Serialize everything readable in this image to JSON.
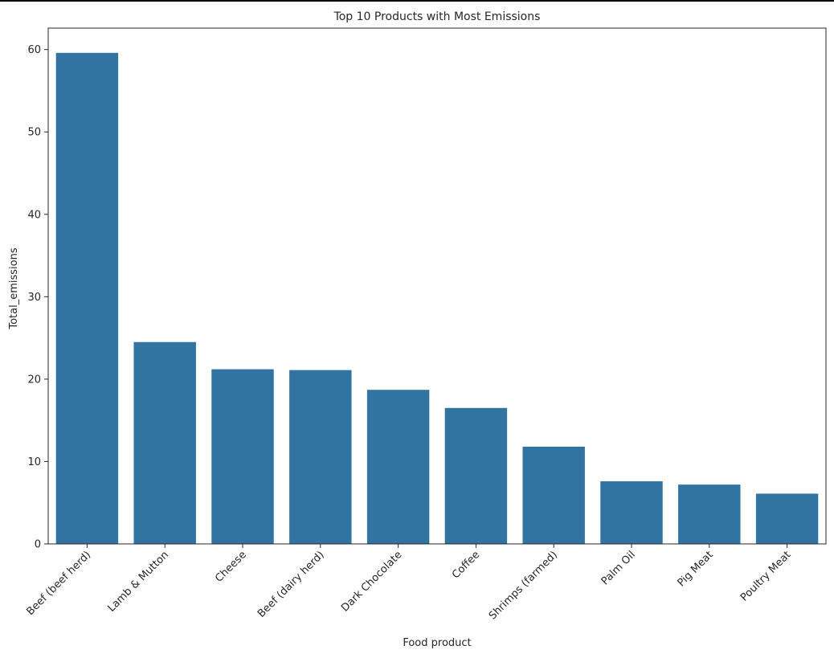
{
  "chart_data": {
    "type": "bar",
    "title": "Top 10 Products with Most Emissions",
    "xlabel": "Food product",
    "ylabel": "Total_emissions",
    "categories": [
      "Beef (beef herd)",
      "Lamb & Mutton",
      "Cheese",
      "Beef (dairy herd)",
      "Dark Chocolate",
      "Coffee",
      "Shrimps (farmed)",
      "Palm Oil",
      "Pig Meat",
      "Poultry Meat"
    ],
    "values": [
      59.6,
      24.5,
      21.2,
      21.1,
      18.7,
      16.5,
      11.8,
      7.6,
      7.2,
      6.1
    ],
    "yticks": [
      "0",
      "10",
      "20",
      "30",
      "40",
      "50",
      "60"
    ],
    "ylim": [
      0,
      62.6
    ],
    "grid": false,
    "bar_color": "#3274a1",
    "axis_color": "#262626"
  }
}
